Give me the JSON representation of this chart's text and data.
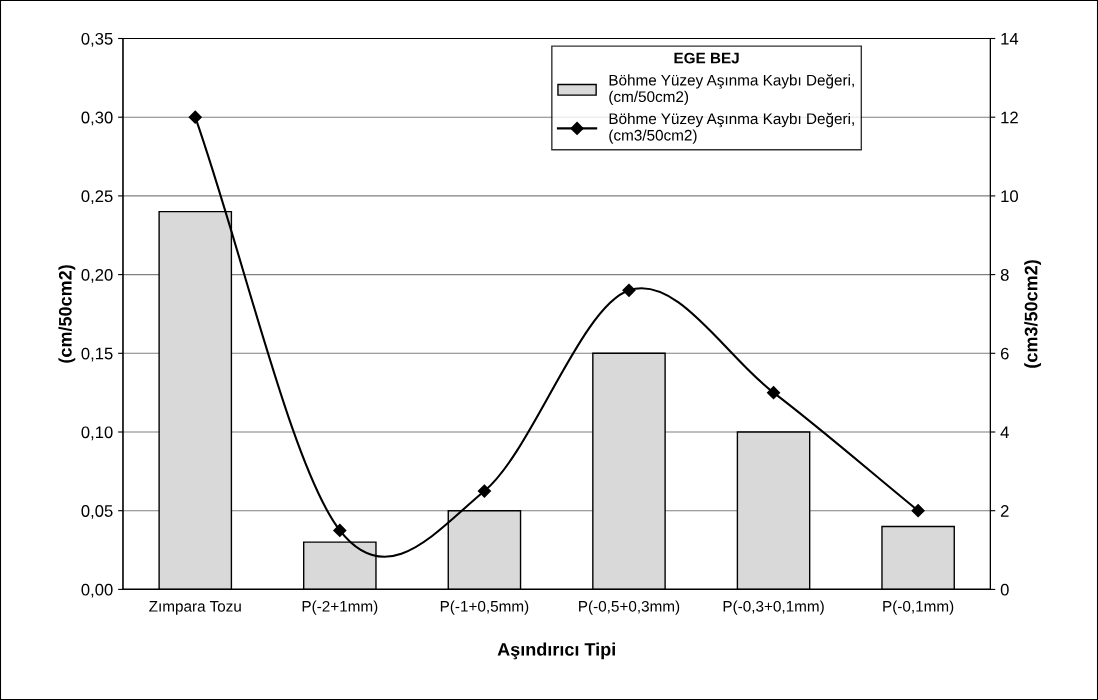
{
  "chart_data": {
    "type": "bar",
    "xlabel": "Aşındırıcı Tipi",
    "ylabel": "(cm/50cm2)",
    "y2label": "(cm3/50cm2)",
    "legend_title": "EGE BEJ",
    "categories": [
      "Zımpara Tozu",
      "P(-2+1mm)",
      "P(-1+0,5mm)",
      "P(-0,5+0,3mm)",
      "P(-0,3+0,1mm)",
      "P(-0,1mm)"
    ],
    "series": [
      {
        "name": "Böhme Yüzey Aşınma Kaybı Değeri,\n(cm/50cm2)",
        "color": "#d9d9d9",
        "values": [
          0.24,
          0.03,
          0.05,
          0.15,
          0.1,
          0.04
        ]
      },
      {
        "name": "Böhme Yüzey Aşınma Kaybı Değeri,\n(cm3/50cm2)",
        "type": "line",
        "axis": "y2",
        "color": "#000000",
        "marker": "diamond",
        "values": [
          12.0,
          1.5,
          2.5,
          7.6,
          5.0,
          2.0
        ]
      }
    ],
    "ylim": [
      0,
      0.35
    ],
    "yticks": [
      {
        "value": 0,
        "label": "0,00"
      },
      {
        "value": 0.05,
        "label": "0,05"
      },
      {
        "value": 0.1,
        "label": "0,10"
      },
      {
        "value": 0.15,
        "label": "0,15"
      },
      {
        "value": 0.2,
        "label": "0,20"
      },
      {
        "value": 0.25,
        "label": "0,25"
      },
      {
        "value": 0.3,
        "label": "0,30"
      },
      {
        "value": 0.35,
        "label": "0,35"
      }
    ],
    "y2lim": [
      0,
      14
    ],
    "y2ticks": [
      0,
      2,
      4,
      6,
      8,
      10,
      12,
      14
    ],
    "grid": "y",
    "legend": "top right"
  }
}
